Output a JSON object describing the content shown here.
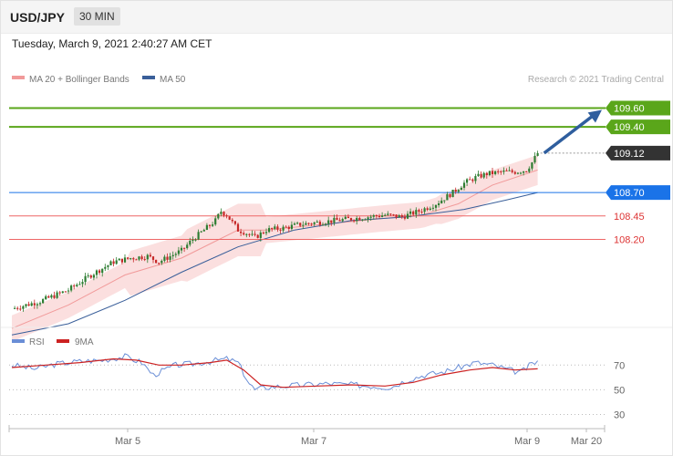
{
  "header": {
    "symbol": "USD/JPY",
    "interval": "30 MIN",
    "timestamp": "Tuesday, March 9, 2021 2:40:27 AM CET"
  },
  "legend": {
    "ma20_label": "MA 20 + Bollinger Bands",
    "ma50_label": "MA 50",
    "credit": "Research © 2021 Trading Central",
    "rsi_label": "RSI",
    "rsi_ma_label": "9MA"
  },
  "colors": {
    "up_candle": "#2e7d32",
    "down_candle": "#c62828",
    "bollinger": "#f8c9c9",
    "ma20": "#f19a9a",
    "ma50": "#3a5f9a",
    "resistance": "#5aa61a",
    "pivot": "#1a73e8",
    "support": "#e66",
    "current": "#333333",
    "rsi": "#6a8ed6",
    "rsi_ma": "#cc2222",
    "arrow": "#2f5e9e"
  },
  "chart_data": [
    {
      "type": "candlestick",
      "name": "USD/JPY 30 MIN",
      "price_range": [
        107.3,
        109.8
      ],
      "x_ticks": [
        "Mar 5",
        "Mar 7",
        "Mar 9",
        "Mar 20"
      ],
      "levels": [
        {
          "label": "109.60",
          "value": 109.6,
          "kind": "resistance"
        },
        {
          "label": "109.40",
          "value": 109.4,
          "kind": "resistance"
        },
        {
          "label": "109.12",
          "value": 109.12,
          "kind": "current"
        },
        {
          "label": "108.70",
          "value": 108.7,
          "kind": "pivot"
        },
        {
          "label": "108.45",
          "value": 108.45,
          "kind": "support"
        },
        {
          "label": "108.20",
          "value": 108.2,
          "kind": "support"
        }
      ],
      "close_path": [
        [
          0,
          107.46
        ],
        [
          10,
          107.54
        ],
        [
          20,
          107.66
        ],
        [
          28,
          107.82
        ],
        [
          36,
          107.96
        ],
        [
          42,
          108.0
        ],
        [
          48,
          108.02
        ],
        [
          52,
          107.96
        ],
        [
          56,
          108.02
        ],
        [
          60,
          108.08
        ],
        [
          64,
          108.2
        ],
        [
          68,
          108.3
        ],
        [
          72,
          108.4
        ],
        [
          74,
          108.5
        ],
        [
          76,
          108.46
        ],
        [
          80,
          108.3
        ],
        [
          82,
          108.28
        ],
        [
          86,
          108.22
        ],
        [
          90,
          108.3
        ],
        [
          96,
          108.32
        ],
        [
          102,
          108.36
        ],
        [
          108,
          108.38
        ],
        [
          114,
          108.4
        ],
        [
          120,
          108.42
        ],
        [
          126,
          108.44
        ],
        [
          132,
          108.46
        ],
        [
          138,
          108.44
        ],
        [
          144,
          108.5
        ],
        [
          150,
          108.58
        ],
        [
          156,
          108.7
        ],
        [
          160,
          108.8
        ],
        [
          164,
          108.86
        ],
        [
          168,
          108.9
        ],
        [
          174,
          108.92
        ],
        [
          178,
          108.92
        ],
        [
          182,
          108.94
        ],
        [
          184,
          109.02
        ],
        [
          186,
          109.12
        ]
      ],
      "ma20": [
        [
          0,
          107.25
        ],
        [
          20,
          107.5
        ],
        [
          40,
          107.82
        ],
        [
          60,
          108.0
        ],
        [
          72,
          108.18
        ],
        [
          80,
          108.3
        ],
        [
          90,
          108.3
        ],
        [
          110,
          108.36
        ],
        [
          130,
          108.42
        ],
        [
          145,
          108.46
        ],
        [
          158,
          108.58
        ],
        [
          170,
          108.78
        ],
        [
          186,
          108.94
        ]
      ],
      "ma50": [
        [
          0,
          107.18
        ],
        [
          20,
          107.3
        ],
        [
          40,
          107.55
        ],
        [
          60,
          107.85
        ],
        [
          80,
          108.12
        ],
        [
          100,
          108.3
        ],
        [
          120,
          108.4
        ],
        [
          140,
          108.44
        ],
        [
          160,
          108.52
        ],
        [
          175,
          108.62
        ],
        [
          186,
          108.7
        ]
      ],
      "forecast_arrow": {
        "from": [
          187,
          109.12
        ],
        "to": [
          208,
          109.6
        ]
      }
    },
    {
      "type": "line",
      "name": "RSI",
      "y_ticks": [
        30,
        50,
        70
      ],
      "y_range": [
        20,
        85
      ],
      "rsi": [
        [
          0,
          70
        ],
        [
          8,
          67
        ],
        [
          16,
          71
        ],
        [
          24,
          73
        ],
        [
          32,
          74
        ],
        [
          40,
          77
        ],
        [
          46,
          72
        ],
        [
          50,
          62
        ],
        [
          54,
          66
        ],
        [
          58,
          70
        ],
        [
          64,
          71
        ],
        [
          70,
          73
        ],
        [
          76,
          75
        ],
        [
          80,
          72
        ],
        [
          84,
          55
        ],
        [
          86,
          50
        ],
        [
          90,
          52
        ],
        [
          96,
          53
        ],
        [
          104,
          54
        ],
        [
          112,
          55
        ],
        [
          120,
          54
        ],
        [
          128,
          53
        ],
        [
          134,
          52
        ],
        [
          140,
          58
        ],
        [
          146,
          62
        ],
        [
          152,
          64
        ],
        [
          158,
          68
        ],
        [
          164,
          72
        ],
        [
          170,
          70
        ],
        [
          176,
          66
        ],
        [
          180,
          64
        ],
        [
          184,
          71
        ],
        [
          186,
          73
        ]
      ],
      "rsi_ma": [
        [
          0,
          68
        ],
        [
          12,
          70
        ],
        [
          24,
          72
        ],
        [
          36,
          75
        ],
        [
          44,
          74
        ],
        [
          52,
          70
        ],
        [
          60,
          70
        ],
        [
          70,
          72
        ],
        [
          76,
          74
        ],
        [
          82,
          66
        ],
        [
          88,
          54
        ],
        [
          96,
          52
        ],
        [
          108,
          53
        ],
        [
          120,
          54
        ],
        [
          132,
          53
        ],
        [
          142,
          56
        ],
        [
          152,
          62
        ],
        [
          162,
          66
        ],
        [
          170,
          68
        ],
        [
          178,
          66
        ],
        [
          186,
          67
        ]
      ]
    }
  ]
}
